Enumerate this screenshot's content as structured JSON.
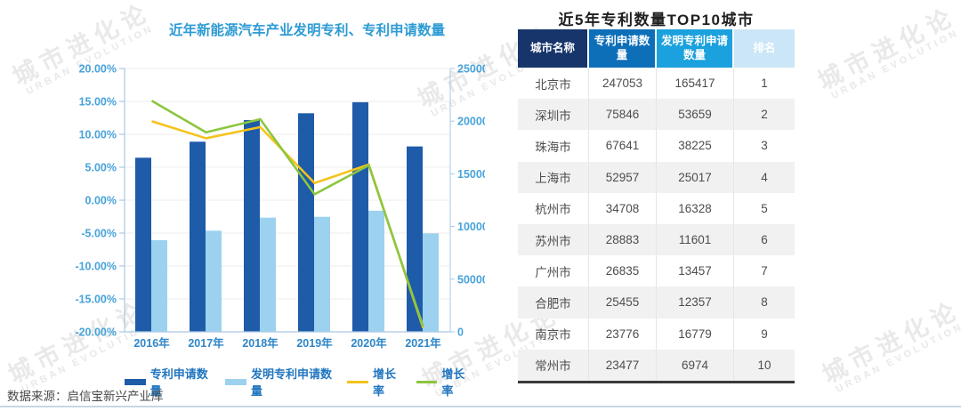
{
  "page": {
    "source_note": "数据来源：启信宝新兴产业库",
    "watermark": {
      "line1": "城市进化论",
      "line2": "URBAN EVOLUTION"
    }
  },
  "chart": {
    "title": "近年新能源汽车产业发明专利、专利申请数量"
  },
  "chart_data": {
    "type": "combo-bar-line",
    "title": "近年新能源汽车产业发明专利、专利申请数量",
    "categories": [
      "2016年",
      "2017年",
      "2018年",
      "2019年",
      "2020年",
      "2021年"
    ],
    "series": [
      {
        "kind": "bar",
        "name": "专利申请数量",
        "axis": "right",
        "color": "#1e5ba8",
        "values": [
          165300,
          180500,
          201000,
          207500,
          218000,
          176000
        ]
      },
      {
        "kind": "bar",
        "name": "发明专利申请数量",
        "axis": "right",
        "color": "#9cd2ef",
        "values": [
          87000,
          96000,
          108400,
          109200,
          115000,
          93500
        ]
      },
      {
        "kind": "line",
        "name": "增长率",
        "axis": "left",
        "color": "#f5c31d",
        "values": [
          12.0,
          9.4,
          11.1,
          2.6,
          5.4,
          -19.4
        ]
      },
      {
        "kind": "line",
        "name": "增长率",
        "axis": "left",
        "color": "#8cc63f",
        "values": [
          15.1,
          10.3,
          12.3,
          0.9,
          5.3,
          -19.2
        ]
      }
    ],
    "left_axis": {
      "min": -20,
      "max": 20,
      "step": 5,
      "format": "percent2",
      "tick_color": "#48a3da"
    },
    "right_axis": {
      "min": 0,
      "max": 250000,
      "step": 50000,
      "tick_color": "#48a3da"
    },
    "grid": true,
    "legend_position": "bottom",
    "axis_line_color": "#a9c8e4",
    "grid_color": "#ececec",
    "category_label_color": "#2e86c8"
  },
  "table": {
    "title": "近5年专利数量TOP10城市",
    "columns": [
      {
        "label": "城市名称",
        "header_bg": "#17356b"
      },
      {
        "label": "专利申请数量",
        "header_bg": "#0e6fb9"
      },
      {
        "label": "发明专利申请数量",
        "header_bg": "#1ba1dd"
      },
      {
        "label": "排名",
        "header_bg": "#cbe6f6"
      }
    ],
    "rows": [
      [
        "北京市",
        "247053",
        "165417",
        "1"
      ],
      [
        "深圳市",
        "75846",
        "53659",
        "2"
      ],
      [
        "珠海市",
        "67641",
        "38225",
        "3"
      ],
      [
        "上海市",
        "52957",
        "25017",
        "4"
      ],
      [
        "杭州市",
        "34708",
        "16328",
        "5"
      ],
      [
        "苏州市",
        "28883",
        "11601",
        "6"
      ],
      [
        "广州市",
        "26835",
        "13457",
        "7"
      ],
      [
        "合肥市",
        "25455",
        "12357",
        "8"
      ],
      [
        "南京市",
        "23776",
        "16779",
        "9"
      ],
      [
        "常州市",
        "23477",
        "6974",
        "10"
      ]
    ]
  }
}
